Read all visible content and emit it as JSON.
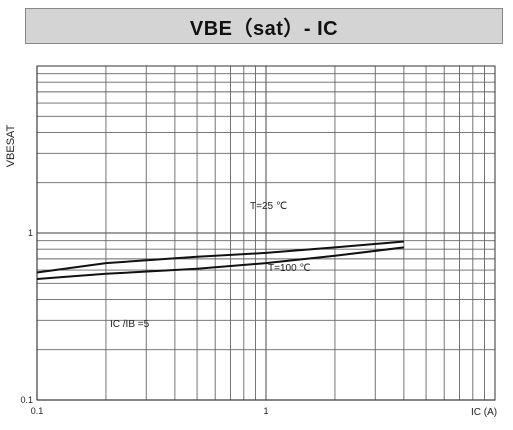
{
  "chart_data": {
    "type": "line",
    "title": "VBE（sat）- IC",
    "xlabel": "IC (A)",
    "ylabel": "VBESAT",
    "x_scale": "log",
    "y_scale": "log",
    "xlim": [
      0.1,
      10
    ],
    "ylim": [
      0.1,
      10
    ],
    "x_tick_labels": [
      {
        "value": 0.1,
        "label": "0.1"
      },
      {
        "value": 1,
        "label": "1"
      }
    ],
    "y_tick_labels": [
      {
        "value": 1,
        "label": "1"
      },
      {
        "value": 0.1,
        "label": "0.1"
      }
    ],
    "grid": true,
    "series": [
      {
        "name": "T=25 ℃",
        "x": [
          0.1,
          0.2,
          0.5,
          1,
          2,
          4
        ],
        "y": [
          0.58,
          0.66,
          0.72,
          0.76,
          0.82,
          0.89
        ]
      },
      {
        "name": "T=100 ℃",
        "x": [
          0.1,
          0.2,
          0.5,
          1,
          2,
          4
        ],
        "y": [
          0.53,
          0.57,
          0.61,
          0.66,
          0.73,
          0.82
        ]
      }
    ],
    "series_labels": [
      "T=25 ℃",
      "T=100 ℃"
    ],
    "annotation": "IC /IB =5",
    "line_color": "#111111",
    "grid_color": "#666666"
  }
}
